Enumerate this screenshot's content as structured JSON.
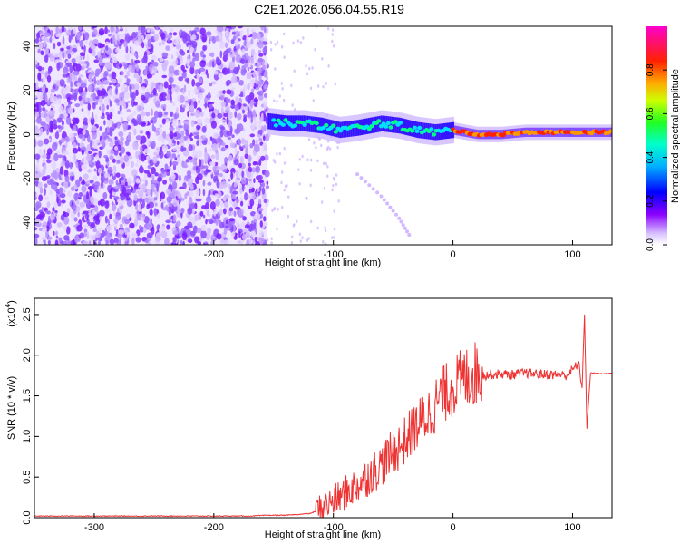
{
  "page_title": "C2E1.2026.056.04.55.R19",
  "chart_data": [
    {
      "type": "heatmap",
      "title": "C2E1.2026.056.04.55.R19",
      "xlabel": "Height of straight line (km)",
      "ylabel": "Frequency (Hz)",
      "xlim": [
        -350,
        133
      ],
      "ylim": [
        -50,
        49
      ],
      "xticks": [
        -300,
        -200,
        -100,
        0,
        100
      ],
      "yticks": [
        -40,
        -20,
        0,
        20,
        40
      ],
      "colorbar": {
        "label": "Normalized spectral amplitude",
        "range": [
          0,
          1
        ],
        "ticks": [
          0.0,
          0.2,
          0.4,
          0.6,
          0.8
        ],
        "colormap": [
          "#ffffff",
          "#c7a8ff",
          "#7a00ff",
          "#0000ff",
          "#00e5ff",
          "#00ff66",
          "#ffff00",
          "#ff7700",
          "#ff0000",
          "#ff00aa"
        ]
      },
      "regions": [
        {
          "name": "noise",
          "x_range": [
            -350,
            -155
          ],
          "freq_range": [
            -50,
            49
          ],
          "amplitude": 0.1
        },
        {
          "name": "signal",
          "x_range": [
            -155,
            133
          ],
          "amplitude_range": [
            0.1,
            0.9
          ]
        }
      ],
      "signal_track": [
        {
          "x": -155,
          "freq": 6
        },
        {
          "x": -140,
          "freq": 5
        },
        {
          "x": -125,
          "freq": 5
        },
        {
          "x": -110,
          "freq": 4
        },
        {
          "x": -95,
          "freq": 2
        },
        {
          "x": -80,
          "freq": 3
        },
        {
          "x": -60,
          "freq": 5
        },
        {
          "x": -45,
          "freq": 4
        },
        {
          "x": -30,
          "freq": 2
        },
        {
          "x": -15,
          "freq": 1
        },
        {
          "x": 0,
          "freq": 2
        },
        {
          "x": 20,
          "freq": 0
        },
        {
          "x": 40,
          "freq": 0
        },
        {
          "x": 60,
          "freq": 1
        },
        {
          "x": 80,
          "freq": 1
        },
        {
          "x": 100,
          "freq": 1
        },
        {
          "x": 120,
          "freq": 1
        },
        {
          "x": 133,
          "freq": 1
        }
      ],
      "secondary_track": [
        {
          "x": -80,
          "freq": -18
        },
        {
          "x": -60,
          "freq": -28
        },
        {
          "x": -45,
          "freq": -38
        },
        {
          "x": -35,
          "freq": -47
        }
      ]
    },
    {
      "type": "line",
      "xlabel": "Height of straight line (km)",
      "ylabel": "SNR (10 * v/v)",
      "yscale_label": "(x10",
      "yscale_exp": "4",
      "xlim": [
        -350,
        133
      ],
      "ylim": [
        0,
        2.7
      ],
      "xticks": [
        -300,
        -200,
        -100,
        0,
        100
      ],
      "yticks": [
        0.0,
        0.5,
        1.0,
        1.5,
        2.0,
        2.5
      ],
      "color": "#ee3333",
      "series": [
        {
          "x": [
            -350,
            -300,
            -250,
            -200,
            -170,
            -155,
            -140,
            -120,
            -110,
            -100,
            -90,
            -80,
            -70,
            -60,
            -50,
            -40,
            -30,
            -20,
            -10,
            0,
            10,
            20,
            30,
            40,
            50,
            60,
            70,
            80,
            90,
            95,
            100,
            105,
            108,
            110,
            112,
            115,
            120,
            125,
            133
          ],
          "values": [
            0.02,
            0.02,
            0.02,
            0.02,
            0.02,
            0.03,
            0.03,
            0.05,
            0.1,
            0.18,
            0.28,
            0.38,
            0.5,
            0.62,
            0.78,
            0.92,
            1.1,
            1.25,
            1.45,
            1.58,
            1.68,
            1.74,
            1.76,
            1.77,
            1.76,
            1.78,
            1.77,
            1.76,
            1.76,
            1.75,
            1.82,
            1.9,
            1.6,
            2.5,
            1.1,
            1.78,
            1.78,
            1.77,
            1.78
          ]
        }
      ]
    }
  ]
}
